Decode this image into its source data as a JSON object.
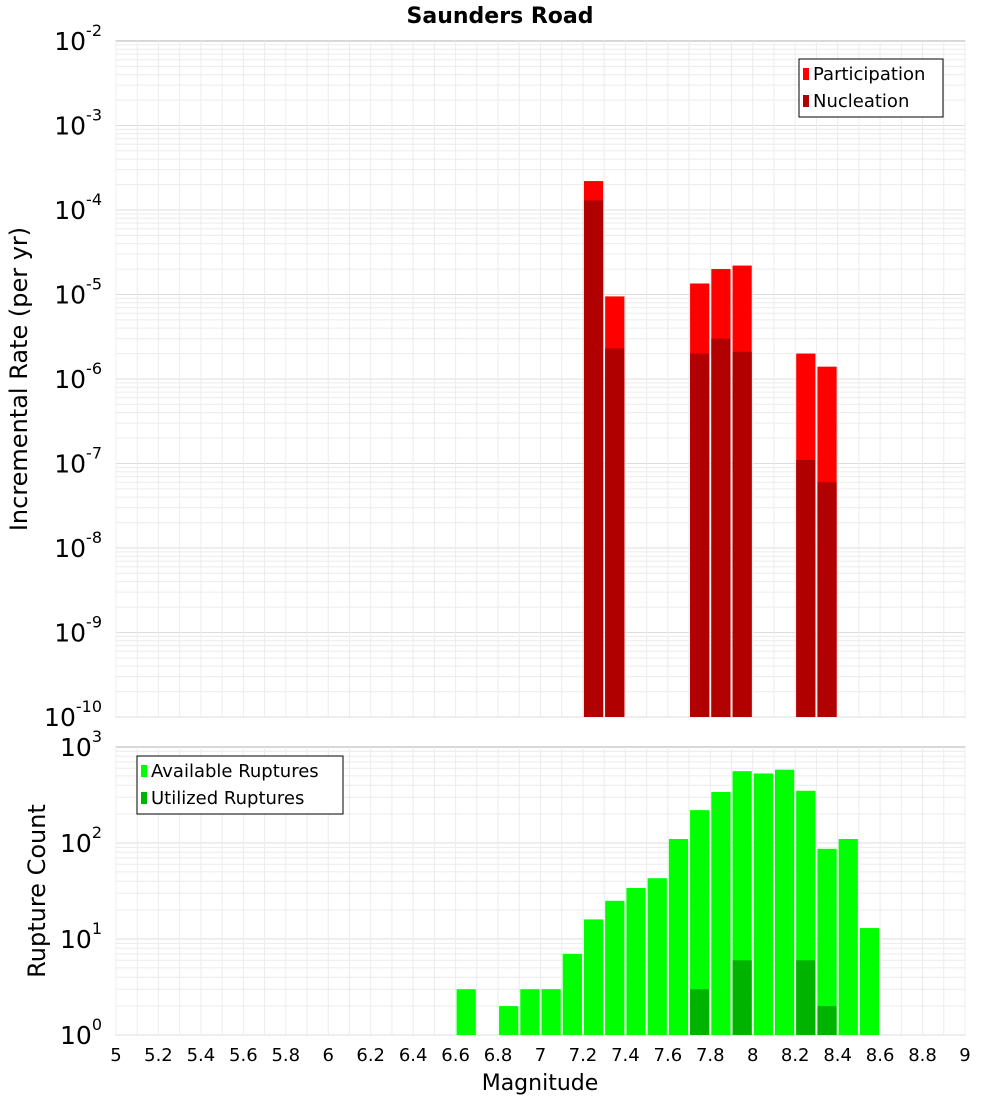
{
  "chart_data": {
    "title": "Saunders Road",
    "xlabel": "Magnitude",
    "x_ticks": [
      "5",
      "5.2",
      "5.4",
      "5.6",
      "5.8",
      "6",
      "6.2",
      "6.4",
      "6.6",
      "6.8",
      "7",
      "7.2",
      "7.4",
      "7.6",
      "7.8",
      "8",
      "8.2",
      "8.4",
      "8.6",
      "8.8",
      "9"
    ],
    "xlim": [
      5,
      9
    ],
    "bin_width": 0.1,
    "grid": true,
    "panels": [
      {
        "type": "bar",
        "ylabel": "Incremental Rate (per yr)",
        "yscale": "log",
        "ylim_exp": [
          -10,
          -2
        ],
        "y_tick_exponents": [
          -2,
          -3,
          -4,
          -5,
          -6,
          -7,
          -8,
          -9,
          -10
        ],
        "legend_position": "top-right",
        "series": [
          {
            "name": "Participation",
            "color": "#ff0000",
            "points": [
              {
                "x": 7.25,
                "y": 0.00022
              },
              {
                "x": 7.35,
                "y": 9.5e-06
              },
              {
                "x": 7.75,
                "y": 1.35e-05
              },
              {
                "x": 7.85,
                "y": 2e-05
              },
              {
                "x": 7.95,
                "y": 2.2e-05
              },
              {
                "x": 8.25,
                "y": 2e-06
              },
              {
                "x": 8.35,
                "y": 1.4e-06
              }
            ]
          },
          {
            "name": "Nucleation",
            "color": "#b00000",
            "points": [
              {
                "x": 7.25,
                "y": 0.00013
              },
              {
                "x": 7.35,
                "y": 2.3e-06
              },
              {
                "x": 7.75,
                "y": 2e-06
              },
              {
                "x": 7.85,
                "y": 3e-06
              },
              {
                "x": 7.95,
                "y": 2.1e-06
              },
              {
                "x": 8.25,
                "y": 1.1e-07
              },
              {
                "x": 8.35,
                "y": 6e-08
              }
            ]
          }
        ]
      },
      {
        "type": "bar",
        "ylabel": "Rupture Count",
        "yscale": "log",
        "ylim_exp": [
          0,
          3
        ],
        "y_tick_exponents": [
          3,
          2,
          1,
          0
        ],
        "legend_position": "top-left",
        "series": [
          {
            "name": "Available Ruptures",
            "color": "#00ff00",
            "points": [
              {
                "x": 6.65,
                "y": 3
              },
              {
                "x": 6.85,
                "y": 2
              },
              {
                "x": 6.95,
                "y": 3
              },
              {
                "x": 7.05,
                "y": 3
              },
              {
                "x": 7.15,
                "y": 7
              },
              {
                "x": 7.25,
                "y": 16
              },
              {
                "x": 7.35,
                "y": 25
              },
              {
                "x": 7.45,
                "y": 34
              },
              {
                "x": 7.55,
                "y": 43
              },
              {
                "x": 7.65,
                "y": 110
              },
              {
                "x": 7.75,
                "y": 220
              },
              {
                "x": 7.85,
                "y": 340
              },
              {
                "x": 7.95,
                "y": 560
              },
              {
                "x": 8.05,
                "y": 530
              },
              {
                "x": 8.15,
                "y": 580
              },
              {
                "x": 8.25,
                "y": 350
              },
              {
                "x": 8.35,
                "y": 87
              },
              {
                "x": 8.45,
                "y": 110
              },
              {
                "x": 8.55,
                "y": 13
              }
            ]
          },
          {
            "name": "Utilized Ruptures",
            "color": "#00b300",
            "points": [
              {
                "x": 7.25,
                "y": 1
              },
              {
                "x": 7.35,
                "y": 1
              },
              {
                "x": 7.75,
                "y": 3
              },
              {
                "x": 7.85,
                "y": 1
              },
              {
                "x": 7.95,
                "y": 6
              },
              {
                "x": 8.25,
                "y": 6
              },
              {
                "x": 8.35,
                "y": 2
              }
            ]
          }
        ]
      }
    ]
  }
}
